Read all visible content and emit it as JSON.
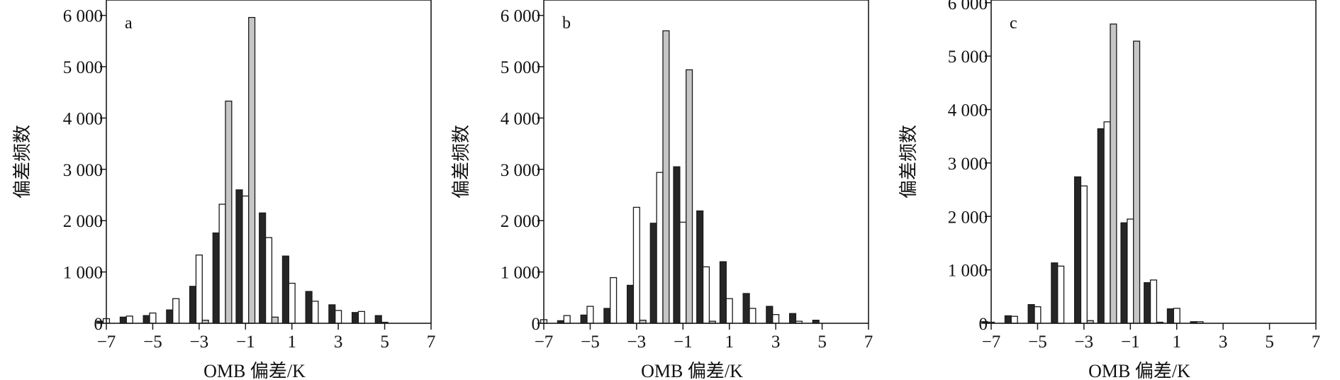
{
  "colors": {
    "black": "#262626",
    "white": "#ffffff",
    "gray": "#c6c6c6",
    "stroke": "#1a1a1a"
  },
  "chart_data": [
    {
      "type": "bar",
      "panel": "a",
      "xlabel": "OMB 偏差/K",
      "ylabel": "偏差频数",
      "xlim": [
        -7,
        7
      ],
      "ylim": [
        0,
        6300
      ],
      "x_ticks": [
        "−7",
        "−5",
        "−3",
        "−1",
        "1",
        "3",
        "5",
        "7"
      ],
      "y_ticks": [
        "0",
        "1 000",
        "2 000",
        "3 000",
        "4 000",
        "5 000",
        "6 000"
      ],
      "bin_centers": [
        -7,
        -6,
        -5,
        -4,
        -3,
        -2,
        -1,
        0,
        1,
        2,
        3,
        4,
        5,
        6
      ],
      "series": [
        {
          "color": "black",
          "values": [
            40,
            120,
            150,
            260,
            720,
            1760,
            2600,
            2150,
            1310,
            620,
            360,
            210,
            150,
            0
          ]
        },
        {
          "color": "white",
          "values": [
            90,
            140,
            200,
            480,
            1330,
            2320,
            2480,
            1670,
            780,
            430,
            250,
            230,
            20,
            0
          ]
        },
        {
          "color": "gray",
          "values": [
            0,
            0,
            0,
            0,
            60,
            4330,
            5960,
            120,
            0,
            0,
            0,
            0,
            0,
            0
          ]
        }
      ]
    },
    {
      "type": "bar",
      "panel": "b",
      "xlabel": "OMB 偏差/K",
      "ylabel": "偏差频数",
      "xlim": [
        -7,
        7
      ],
      "ylim": [
        0,
        6300
      ],
      "x_ticks": [
        "−7",
        "−5",
        "−3",
        "−1",
        "1",
        "3",
        "5",
        "7"
      ],
      "y_ticks": [
        "0",
        "1 000",
        "2 000",
        "3 000",
        "4 000",
        "5 000",
        "6 000"
      ],
      "bin_centers": [
        -7,
        -6,
        -5,
        -4,
        -3,
        -2,
        -1,
        0,
        1,
        2,
        3,
        4,
        5,
        6
      ],
      "series": [
        {
          "color": "black",
          "values": [
            0,
            50,
            160,
            290,
            740,
            1950,
            3050,
            2190,
            1200,
            580,
            330,
            190,
            60,
            0
          ]
        },
        {
          "color": "white",
          "values": [
            70,
            150,
            330,
            890,
            2260,
            2940,
            1970,
            1100,
            480,
            290,
            170,
            40,
            0,
            0
          ]
        },
        {
          "color": "gray",
          "values": [
            0,
            0,
            0,
            0,
            60,
            5700,
            4940,
            40,
            0,
            0,
            0,
            0,
            0,
            0
          ]
        }
      ]
    },
    {
      "type": "bar",
      "panel": "c",
      "xlabel": "OMB 偏差/K",
      "ylabel": "偏差频数",
      "xlim": [
        -7,
        7
      ],
      "ylim": [
        0,
        6050
      ],
      "x_ticks": [
        "−7",
        "−5",
        "−3",
        "−1",
        "1",
        "3",
        "5",
        "7"
      ],
      "y_ticks": [
        "0",
        "1 000",
        "2 000",
        "3 000",
        "4 000",
        "5 000",
        "6 000"
      ],
      "bin_centers": [
        -7,
        -6,
        -5,
        -4,
        -3,
        -2,
        -1,
        0,
        1,
        2,
        3,
        4,
        5,
        6
      ],
      "series": [
        {
          "color": "black",
          "values": [
            30,
            140,
            350,
            1130,
            2740,
            3640,
            1880,
            760,
            270,
            30,
            0,
            0,
            0,
            0
          ]
        },
        {
          "color": "white",
          "values": [
            20,
            130,
            310,
            1070,
            2570,
            3770,
            1950,
            810,
            280,
            30,
            0,
            0,
            0,
            0
          ]
        },
        {
          "color": "gray",
          "values": [
            0,
            0,
            0,
            0,
            50,
            5600,
            5280,
            20,
            0,
            0,
            0,
            0,
            0,
            0
          ]
        }
      ]
    }
  ]
}
